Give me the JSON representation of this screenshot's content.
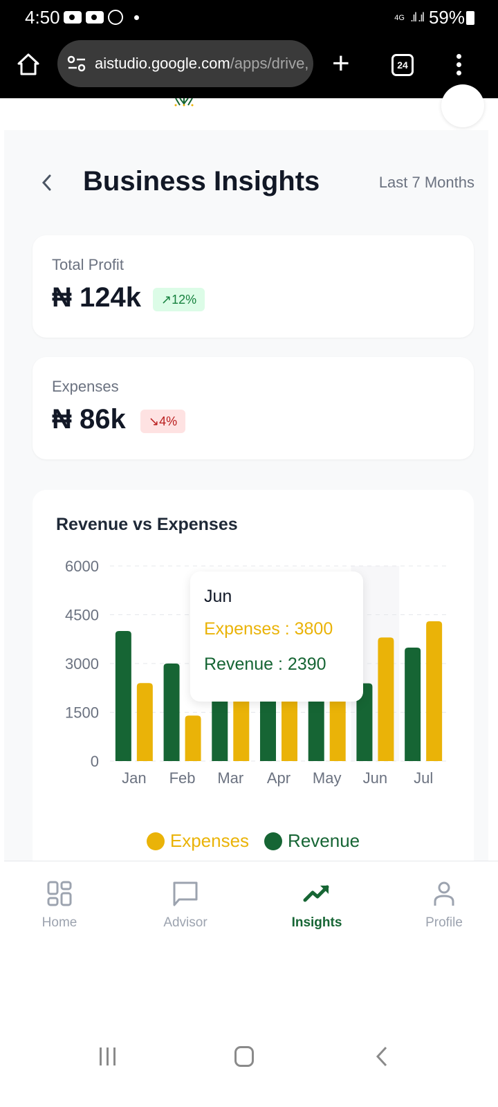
{
  "status_bar": {
    "time": "4:50",
    "network": "4G",
    "battery": "59%"
  },
  "browser": {
    "url_host": "aistudio.google.com",
    "url_path": "/apps/drive,",
    "tab_count": "24"
  },
  "header": {
    "title": "Business Insights",
    "range": "Last 7 Months"
  },
  "cards": [
    {
      "label": "Total Profit",
      "value": "₦ 124k",
      "change": "↗12%",
      "trend": "up"
    },
    {
      "label": "Expenses",
      "value": "₦ 86k",
      "change": "↘4%",
      "trend": "down"
    }
  ],
  "colors": {
    "revenue": "#166534",
    "expenses": "#eab308",
    "accent": "#166534"
  },
  "tooltip": {
    "label": "Jun",
    "expenses": "Expenses : 3800",
    "revenue": "Revenue : 2390"
  },
  "chart_data": {
    "type": "bar",
    "title": "Revenue vs Expenses",
    "categories": [
      "Jan",
      "Feb",
      "Mar",
      "Apr",
      "May",
      "Jun",
      "Jul"
    ],
    "series": [
      {
        "name": "Revenue",
        "color": "#166534",
        "values": [
          4000,
          3000,
          2000,
          2000,
          2000,
          2390,
          3490
        ]
      },
      {
        "name": "Expenses",
        "color": "#eab308",
        "values": [
          2400,
          1398,
          2000,
          2000,
          2000,
          3800,
          4300
        ]
      }
    ],
    "yticks": [
      "0",
      "1500",
      "3000",
      "4500",
      "6000"
    ],
    "ylim": [
      0,
      6000
    ],
    "xlabel": "",
    "ylabel": "",
    "grid": true,
    "legend": [
      "Expenses",
      "Revenue"
    ],
    "legend_position": "bottom",
    "highlighted_category": "Jun"
  },
  "nav": [
    {
      "label": "Home",
      "icon": "grid-icon"
    },
    {
      "label": "Advisor",
      "icon": "chat-icon"
    },
    {
      "label": "Insights",
      "icon": "trending-up-icon",
      "active": true
    },
    {
      "label": "Profile",
      "icon": "user-icon"
    }
  ]
}
